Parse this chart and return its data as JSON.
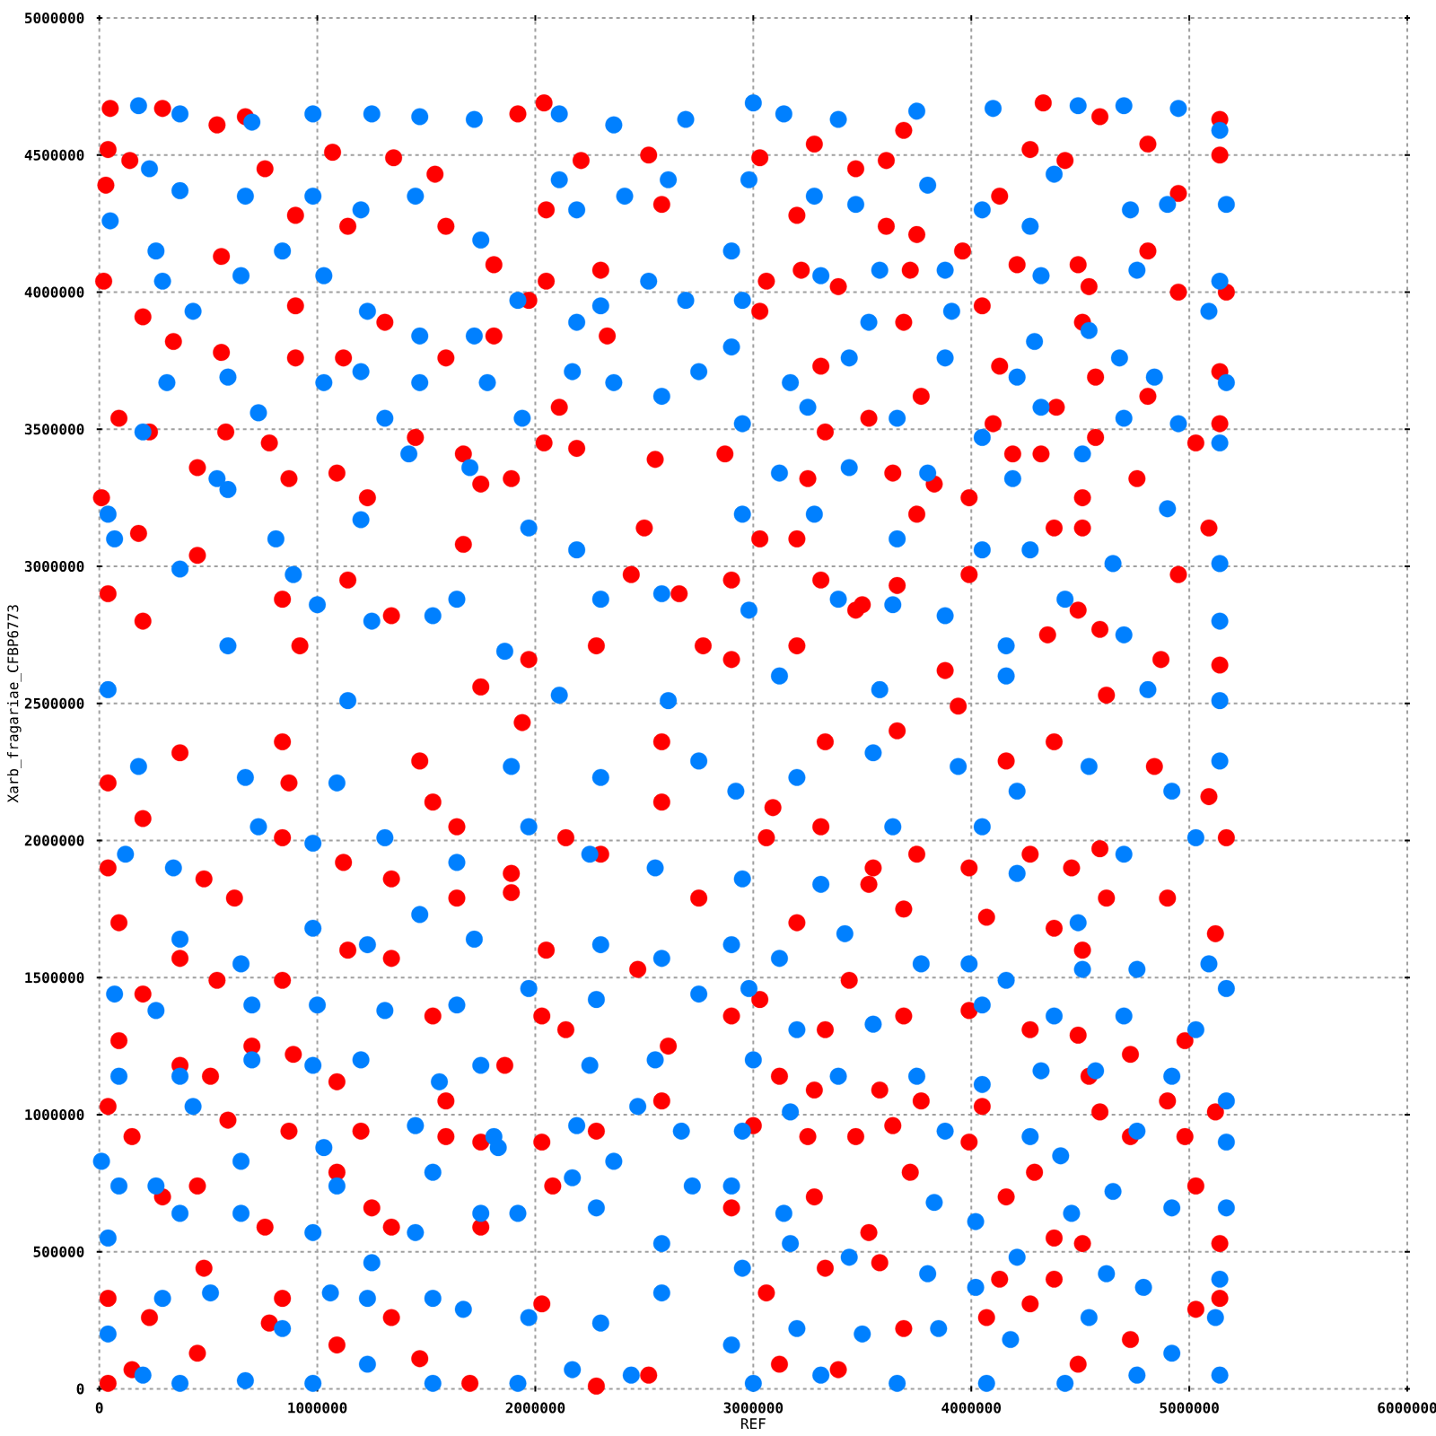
{
  "chart_data": {
    "type": "scatter",
    "xlabel": "REF",
    "ylabel": "Xarb_fragariae_CFBP6773",
    "xlim": [
      0,
      6000000
    ],
    "ylim": [
      0,
      5000000
    ],
    "xticks": [
      0,
      1000000,
      2000000,
      3000000,
      4000000,
      5000000,
      6000000
    ],
    "yticks": [
      0,
      500000,
      1000000,
      1500000,
      2000000,
      2500000,
      3000000,
      3500000,
      4000000,
      4500000,
      5000000
    ],
    "grid": true,
    "marker": "circle",
    "series": [
      {
        "color": "#ff0000",
        "x": [
          50000,
          290000,
          40000,
          140000,
          30000,
          540000,
          760000,
          670000,
          900000,
          1070000,
          1140000,
          1350000,
          1540000,
          1590000,
          1810000,
          1920000,
          2040000,
          2050000,
          2210000,
          2520000,
          2580000,
          20000,
          200000,
          340000,
          560000,
          560000,
          900000,
          900000,
          1120000,
          1310000,
          1590000,
          1810000,
          2050000,
          1970000,
          2300000,
          2330000,
          2110000,
          90000,
          230000,
          450000,
          580000,
          780000,
          870000,
          1090000,
          1230000,
          1450000,
          1670000,
          1750000,
          1890000,
          2040000,
          2190000,
          2500000,
          2550000,
          10000,
          180000,
          450000,
          40000,
          200000,
          840000,
          920000,
          1140000,
          1340000,
          1670000,
          1750000,
          1970000,
          2280000,
          2660000,
          2770000,
          2440000,
          4330000,
          4590000,
          5140000,
          3690000,
          3280000,
          3030000,
          3470000,
          3610000,
          4130000,
          4270000,
          4430000,
          4810000,
          5140000,
          4950000,
          3200000,
          3610000,
          3750000,
          3960000,
          4210000,
          4490000,
          4810000,
          3060000,
          3220000,
          3390000,
          3720000,
          4540000,
          4950000,
          5170000,
          3030000,
          4050000,
          3690000,
          4510000,
          3310000,
          4130000,
          4570000,
          5140000,
          4810000,
          3770000,
          4390000,
          3330000,
          3530000,
          4100000,
          4190000,
          4320000,
          4570000,
          4760000,
          5030000,
          5140000,
          2870000,
          3250000,
          3640000,
          3830000,
          3990000,
          4510000,
          5090000,
          3030000,
          3200000,
          3750000,
          4380000,
          4510000,
          2900000,
          3310000,
          3500000,
          3660000,
          3990000,
          4490000,
          4950000,
          2900000,
          3200000,
          3470000,
          3880000,
          4350000,
          4590000,
          4870000,
          5140000,
          3940000,
          4620000,
          40000,
          150000,
          230000,
          40000,
          450000,
          480000,
          780000,
          840000,
          1090000,
          1340000,
          1470000,
          1700000,
          2030000,
          2280000,
          2520000,
          290000,
          450000,
          760000,
          1090000,
          1250000,
          1340000,
          1750000,
          2080000,
          40000,
          150000,
          590000,
          870000,
          1200000,
          1590000,
          1750000,
          2030000,
          2280000,
          2580000,
          90000,
          370000,
          510000,
          700000,
          890000,
          1090000,
          1530000,
          1590000,
          1860000,
          2030000,
          2140000,
          2610000,
          370000,
          200000,
          540000,
          840000,
          1140000,
          1340000,
          1640000,
          1890000,
          2050000,
          2470000,
          90000,
          200000,
          40000,
          480000,
          620000,
          840000,
          870000,
          1120000,
          1340000,
          1530000,
          1640000,
          1890000,
          2140000,
          2300000,
          2580000,
          2750000,
          40000,
          370000,
          840000,
          1470000,
          1940000,
          2580000,
          3120000,
          3390000,
          3690000,
          4070000,
          4270000,
          4490000,
          4730000,
          5030000,
          3060000,
          3330000,
          3580000,
          4130000,
          4380000,
          5140000,
          2900000,
          3280000,
          3530000,
          3720000,
          4160000,
          4380000,
          4510000,
          5030000,
          5140000,
          3000000,
          3250000,
          3470000,
          3640000,
          3990000,
          4290000,
          4590000,
          4730000,
          4980000,
          5120000,
          3120000,
          3280000,
          3580000,
          3770000,
          4050000,
          4540000,
          4900000,
          3030000,
          3330000,
          3440000,
          3690000,
          3990000,
          4270000,
          4490000,
          4730000,
          4980000,
          2900000,
          3200000,
          3530000,
          3690000,
          4070000,
          4380000,
          4510000,
          4620000,
          4900000,
          5120000,
          3060000,
          3090000,
          3310000,
          3550000,
          3750000,
          3990000,
          4270000,
          4460000,
          4590000,
          5170000,
          3330000,
          3660000,
          4160000,
          4380000,
          4840000,
          5090000
        ],
        "values": [
          4670000,
          4670000,
          4520000,
          4480000,
          4390000,
          4610000,
          4450000,
          4640000,
          4280000,
          4510000,
          4240000,
          4490000,
          4430000,
          4240000,
          4100000,
          4650000,
          4690000,
          4300000,
          4480000,
          4500000,
          4320000,
          4040000,
          3910000,
          3820000,
          3780000,
          4130000,
          3950000,
          3760000,
          3760000,
          3890000,
          3760000,
          3840000,
          4040000,
          3970000,
          4080000,
          3840000,
          3580000,
          3540000,
          3490000,
          3360000,
          3490000,
          3450000,
          3320000,
          3340000,
          3250000,
          3470000,
          3410000,
          3300000,
          3320000,
          3450000,
          3430000,
          3140000,
          3390000,
          3250000,
          3120000,
          3040000,
          2900000,
          2800000,
          2880000,
          2710000,
          2950000,
          2820000,
          3080000,
          2560000,
          2660000,
          2710000,
          2900000,
          2710000,
          2970000,
          4690000,
          4640000,
          4630000,
          4590000,
          4540000,
          4490000,
          4450000,
          4480000,
          4350000,
          4520000,
          4480000,
          4540000,
          4500000,
          4360000,
          4280000,
          4240000,
          4210000,
          4150000,
          4100000,
          4100000,
          4150000,
          4040000,
          4080000,
          4020000,
          4080000,
          4020000,
          4000000,
          4000000,
          3930000,
          3950000,
          3890000,
          3890000,
          3730000,
          3730000,
          3690000,
          3710000,
          3620000,
          3620000,
          3580000,
          3490000,
          3540000,
          3520000,
          3410000,
          3410000,
          3470000,
          3320000,
          3450000,
          3520000,
          3410000,
          3320000,
          3340000,
          3300000,
          3250000,
          3250000,
          3140000,
          3100000,
          3100000,
          3190000,
          3140000,
          3140000,
          2950000,
          2950000,
          2860000,
          2930000,
          2970000,
          2840000,
          2970000,
          2660000,
          2710000,
          2840000,
          2620000,
          2750000,
          2770000,
          2660000,
          2640000,
          2490000,
          2530000,
          20000,
          70000,
          260000,
          330000,
          130000,
          440000,
          240000,
          330000,
          160000,
          260000,
          110000,
          20000,
          310000,
          10000,
          50000,
          700000,
          740000,
          590000,
          790000,
          660000,
          590000,
          590000,
          740000,
          1030000,
          920000,
          980000,
          940000,
          940000,
          920000,
          900000,
          900000,
          940000,
          1050000,
          1270000,
          1180000,
          1140000,
          1250000,
          1220000,
          1120000,
          1360000,
          1050000,
          1180000,
          1360000,
          1310000,
          1250000,
          1570000,
          1440000,
          1490000,
          1490000,
          1600000,
          1570000,
          1790000,
          1810000,
          1600000,
          1530000,
          1700000,
          2080000,
          1900000,
          1860000,
          1790000,
          2010000,
          2210000,
          1920000,
          1860000,
          2140000,
          2050000,
          1880000,
          2010000,
          1950000,
          2140000,
          1790000,
          2210000,
          2320000,
          2360000,
          2290000,
          2430000,
          2360000,
          90000,
          70000,
          220000,
          260000,
          310000,
          90000,
          180000,
          290000,
          350000,
          440000,
          460000,
          400000,
          400000,
          330000,
          660000,
          700000,
          570000,
          790000,
          700000,
          550000,
          530000,
          740000,
          530000,
          960000,
          920000,
          920000,
          960000,
          900000,
          790000,
          1010000,
          920000,
          920000,
          1010000,
          1140000,
          1090000,
          1090000,
          1050000,
          1030000,
          1140000,
          1050000,
          1420000,
          1310000,
          1490000,
          1360000,
          1380000,
          1310000,
          1290000,
          1220000,
          1270000,
          1360000,
          1700000,
          1840000,
          1750000,
          1720000,
          1680000,
          1600000,
          1790000,
          1790000,
          1660000,
          2010000,
          2120000,
          2050000,
          1900000,
          1950000,
          1900000,
          1950000,
          1900000,
          1970000,
          2010000,
          2360000,
          2400000,
          2290000,
          2360000,
          2270000,
          2160000
        ]
      },
      {
        "color": "#0080ff",
        "x": [
          180000,
          370000,
          700000,
          980000,
          1250000,
          1470000,
          1720000,
          2110000,
          2360000,
          2690000,
          230000,
          370000,
          670000,
          980000,
          1200000,
          1450000,
          1750000,
          2110000,
          2190000,
          2410000,
          2610000,
          50000,
          260000,
          290000,
          430000,
          650000,
          840000,
          1030000,
          1230000,
          1470000,
          1720000,
          1920000,
          2190000,
          2300000,
          2520000,
          2690000,
          310000,
          200000,
          540000,
          590000,
          730000,
          1030000,
          1200000,
          1310000,
          1420000,
          1470000,
          1700000,
          1780000,
          1940000,
          2170000,
          2360000,
          2580000,
          2750000,
          40000,
          70000,
          370000,
          590000,
          810000,
          890000,
          1000000,
          1200000,
          1250000,
          1530000,
          1640000,
          1860000,
          1970000,
          2190000,
          2300000,
          2580000,
          40000,
          590000,
          1140000,
          2110000,
          2610000,
          3000000,
          3140000,
          3390000,
          3750000,
          4100000,
          4490000,
          4700000,
          4950000,
          5140000,
          2980000,
          3280000,
          3470000,
          3800000,
          4050000,
          4270000,
          4380000,
          4730000,
          4900000,
          5170000,
          2900000,
          3310000,
          3580000,
          3880000,
          4320000,
          4760000,
          5140000,
          2950000,
          3530000,
          3910000,
          4290000,
          4540000,
          5090000,
          2900000,
          3170000,
          3440000,
          3880000,
          4210000,
          4680000,
          4840000,
          5170000,
          2950000,
          3250000,
          3660000,
          4050000,
          4320000,
          4700000,
          4950000,
          5140000,
          3120000,
          3440000,
          3800000,
          4190000,
          4510000,
          4900000,
          2950000,
          3280000,
          3660000,
          4050000,
          4270000,
          4650000,
          5140000,
          2980000,
          3390000,
          3640000,
          3880000,
          4160000,
          4430000,
          4700000,
          5140000,
          3120000,
          3580000,
          4160000,
          4810000,
          5140000,
          200000,
          370000,
          670000,
          980000,
          1230000,
          1530000,
          1920000,
          2170000,
          2440000,
          40000,
          290000,
          510000,
          840000,
          1060000,
          1230000,
          1530000,
          1670000,
          1970000,
          2300000,
          2580000,
          40000,
          370000,
          650000,
          980000,
          1250000,
          1450000,
          1750000,
          1920000,
          2280000,
          2580000,
          10000,
          90000,
          260000,
          650000,
          1090000,
          1530000,
          1830000,
          2170000,
          2360000,
          2720000,
          430000,
          1030000,
          1450000,
          1810000,
          2190000,
          2470000,
          2670000,
          90000,
          370000,
          700000,
          980000,
          1200000,
          1560000,
          1750000,
          2250000,
          2550000,
          70000,
          260000,
          700000,
          1000000,
          1310000,
          1640000,
          1970000,
          2280000,
          2750000,
          370000,
          650000,
          980000,
          1230000,
          1470000,
          1720000,
          2300000,
          2580000,
          120000,
          340000,
          730000,
          980000,
          1310000,
          1640000,
          1970000,
          2250000,
          2550000,
          180000,
          670000,
          1090000,
          1890000,
          2300000,
          2750000,
          3000000,
          3310000,
          3660000,
          4070000,
          4430000,
          4760000,
          5140000,
          2900000,
          3200000,
          3500000,
          3850000,
          4180000,
          4540000,
          4920000,
          5120000,
          2950000,
          3170000,
          3440000,
          3800000,
          4020000,
          4210000,
          4620000,
          4790000,
          5140000,
          2900000,
          3140000,
          3830000,
          4020000,
          4460000,
          4650000,
          4920000,
          5170000,
          2950000,
          3170000,
          3880000,
          4270000,
          4410000,
          4760000,
          5170000,
          3000000,
          3390000,
          3750000,
          4050000,
          4320000,
          4570000,
          4920000,
          5170000,
          2980000,
          3200000,
          3550000,
          4050000,
          4380000,
          4700000,
          5030000,
          5170000,
          2900000,
          3120000,
          3420000,
          3770000,
          3990000,
          4160000,
          4510000,
          4760000,
          5090000,
          2950000,
          3310000,
          3640000,
          4050000,
          4210000,
          4490000,
          4700000,
          5030000,
          2920000,
          3200000,
          3550000,
          3940000,
          4210000,
          4540000,
          4920000,
          5140000
        ],
        "values": [
          4680000,
          4650000,
          4620000,
          4650000,
          4650000,
          4640000,
          4630000,
          4650000,
          4610000,
          4630000,
          4450000,
          4370000,
          4350000,
          4350000,
          4300000,
          4350000,
          4190000,
          4410000,
          4300000,
          4350000,
          4410000,
          4260000,
          4150000,
          4040000,
          3930000,
          4060000,
          4150000,
          4060000,
          3930000,
          3840000,
          3840000,
          3970000,
          3890000,
          3950000,
          4040000,
          3970000,
          3670000,
          3490000,
          3320000,
          3690000,
          3560000,
          3670000,
          3710000,
          3540000,
          3410000,
          3670000,
          3360000,
          3670000,
          3540000,
          3710000,
          3670000,
          3620000,
          3710000,
          3190000,
          3100000,
          2990000,
          3280000,
          3100000,
          2970000,
          2860000,
          3170000,
          2800000,
          2820000,
          2880000,
          2690000,
          3140000,
          3060000,
          2880000,
          2900000,
          2550000,
          2710000,
          2510000,
          2530000,
          2510000,
          4690000,
          4650000,
          4630000,
          4660000,
          4670000,
          4680000,
          4680000,
          4670000,
          4590000,
          4410000,
          4350000,
          4320000,
          4390000,
          4300000,
          4240000,
          4430000,
          4300000,
          4320000,
          4320000,
          4150000,
          4060000,
          4080000,
          4080000,
          4060000,
          4080000,
          4040000,
          3970000,
          3890000,
          3930000,
          3820000,
          3860000,
          3930000,
          3800000,
          3670000,
          3760000,
          3760000,
          3690000,
          3760000,
          3690000,
          3670000,
          3520000,
          3580000,
          3540000,
          3470000,
          3580000,
          3540000,
          3520000,
          3450000,
          3340000,
          3360000,
          3340000,
          3320000,
          3410000,
          3210000,
          3190000,
          3190000,
          3100000,
          3060000,
          3060000,
          3010000,
          3010000,
          2840000,
          2880000,
          2860000,
          2820000,
          2710000,
          2880000,
          2750000,
          2800000,
          2600000,
          2550000,
          2600000,
          2550000,
          2510000,
          50000,
          20000,
          30000,
          20000,
          90000,
          20000,
          20000,
          70000,
          50000,
          200000,
          330000,
          350000,
          220000,
          350000,
          330000,
          330000,
          290000,
          260000,
          240000,
          350000,
          550000,
          640000,
          640000,
          570000,
          460000,
          570000,
          640000,
          640000,
          660000,
          530000,
          830000,
          740000,
          740000,
          830000,
          740000,
          790000,
          880000,
          770000,
          830000,
          740000,
          1030000,
          880000,
          960000,
          920000,
          960000,
          1030000,
          940000,
          1140000,
          1140000,
          1200000,
          1180000,
          1200000,
          1120000,
          1180000,
          1180000,
          1200000,
          1440000,
          1380000,
          1400000,
          1400000,
          1380000,
          1400000,
          1460000,
          1420000,
          1440000,
          1640000,
          1550000,
          1680000,
          1620000,
          1730000,
          1640000,
          1620000,
          1570000,
          1950000,
          1900000,
          2050000,
          1990000,
          2010000,
          1920000,
          2050000,
          1950000,
          1900000,
          2270000,
          2230000,
          2210000,
          2270000,
          2230000,
          2290000,
          20000,
          50000,
          20000,
          20000,
          20000,
          50000,
          50000,
          160000,
          220000,
          200000,
          220000,
          180000,
          260000,
          130000,
          260000,
          440000,
          530000,
          480000,
          420000,
          370000,
          480000,
          420000,
          370000,
          400000,
          740000,
          640000,
          680000,
          610000,
          640000,
          720000,
          660000,
          660000,
          940000,
          1010000,
          940000,
          920000,
          850000,
          940000,
          900000,
          1200000,
          1140000,
          1140000,
          1110000,
          1160000,
          1160000,
          1140000,
          1050000,
          1460000,
          1310000,
          1330000,
          1400000,
          1360000,
          1360000,
          1310000,
          1460000,
          1620000,
          1570000,
          1660000,
          1550000,
          1550000,
          1490000,
          1530000,
          1530000,
          1550000,
          1860000,
          1840000,
          2050000,
          2050000,
          1880000,
          1700000,
          1950000,
          2010000,
          2180000,
          2230000,
          2320000,
          2270000,
          2180000,
          2270000,
          2180000,
          2290000
        ]
      }
    ]
  }
}
